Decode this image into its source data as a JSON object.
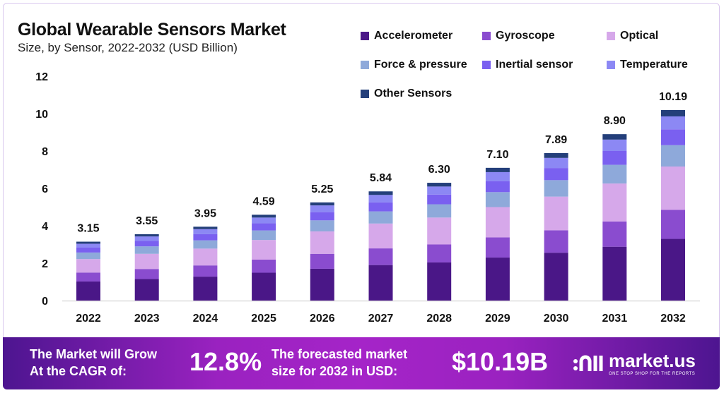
{
  "chart_data": {
    "type": "bar",
    "stacked": true,
    "title": "Global Wearable Sensors Market",
    "subtitle": "Size, by Sensor, 2022-2032 (USD Billion)",
    "xlabel": "",
    "ylabel": "",
    "ylim": [
      0,
      12
    ],
    "yticks": [
      0,
      2,
      4,
      6,
      8,
      10,
      12
    ],
    "grid": false,
    "legend_position": "top-right",
    "categories": [
      "2022",
      "2023",
      "2024",
      "2025",
      "2026",
      "2027",
      "2028",
      "2029",
      "2030",
      "2031",
      "2032"
    ],
    "totals": [
      3.15,
      3.55,
      3.95,
      4.59,
      5.25,
      5.84,
      6.3,
      7.1,
      7.89,
      8.9,
      10.19
    ],
    "total_labels": [
      "3.15",
      "3.55",
      "3.95",
      "4.59",
      "5.25",
      "5.84",
      "6.30",
      "7.10",
      "7.89",
      "8.90",
      "10.19"
    ],
    "series": [
      {
        "name": "Accelerometer",
        "color": "#4a1787",
        "values": [
          1.02,
          1.15,
          1.28,
          1.49,
          1.7,
          1.9,
          2.04,
          2.3,
          2.56,
          2.88,
          3.3
        ]
      },
      {
        "name": "Gyroscope",
        "color": "#8a4ccf",
        "values": [
          0.48,
          0.54,
          0.6,
          0.7,
          0.8,
          0.89,
          0.96,
          1.08,
          1.2,
          1.35,
          1.55
        ]
      },
      {
        "name": "Optical",
        "color": "#d6a8ea",
        "values": [
          0.72,
          0.81,
          0.9,
          1.05,
          1.2,
          1.33,
          1.44,
          1.62,
          1.8,
          2.03,
          2.32
        ]
      },
      {
        "name": "Force & pressure",
        "color": "#8ea9da",
        "values": [
          0.35,
          0.4,
          0.44,
          0.51,
          0.59,
          0.65,
          0.71,
          0.8,
          0.88,
          1.0,
          1.14
        ]
      },
      {
        "name": "Inertial sensor",
        "color": "#7a60f0",
        "values": [
          0.26,
          0.29,
          0.33,
          0.38,
          0.44,
          0.48,
          0.52,
          0.59,
          0.65,
          0.74,
          0.85
        ]
      },
      {
        "name": "Temperature",
        "color": "#8c88f4",
        "values": [
          0.21,
          0.24,
          0.27,
          0.31,
          0.36,
          0.4,
          0.43,
          0.48,
          0.54,
          0.61,
          0.69
        ]
      },
      {
        "name": "Other Sensors",
        "color": "#243f7a",
        "values": [
          0.11,
          0.12,
          0.13,
          0.15,
          0.16,
          0.19,
          0.2,
          0.23,
          0.26,
          0.29,
          0.34
        ]
      }
    ]
  },
  "banner": {
    "cagr_text_1": "The Market will Grow",
    "cagr_text_2": "At the CAGR of:",
    "cagr_value": "12.8%",
    "forecast_text_1": "The forecasted market",
    "forecast_text_2": "size for 2032 in USD:",
    "forecast_value": "$10.19B",
    "logo_name": "market.us",
    "logo_tagline": "ONE STOP SHOP FOR THE REPORTS"
  }
}
